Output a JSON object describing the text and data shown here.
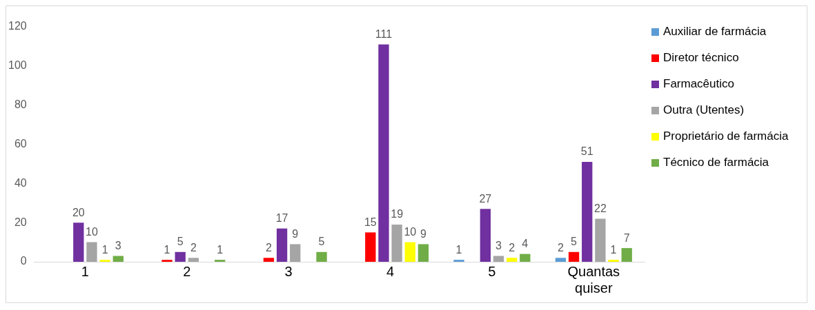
{
  "chart_data": {
    "type": "bar",
    "categories": [
      "1",
      "2",
      "3",
      "4",
      "5",
      "Quantas quiser"
    ],
    "series": [
      {
        "name": "Auxiliar de farmácia",
        "color": "#5b9bd5",
        "values": [
          0,
          0,
          0,
          0,
          1,
          2
        ],
        "value_labels": [
          null,
          null,
          null,
          null,
          "1",
          "2"
        ]
      },
      {
        "name": "Diretor técnico",
        "color": "#ff0000",
        "values": [
          0,
          1,
          2,
          15,
          0,
          5
        ],
        "value_labels": [
          null,
          "1",
          "2",
          "15",
          null,
          "5"
        ]
      },
      {
        "name": "Farmacêutico",
        "color": "#7030a0",
        "values": [
          20,
          5,
          17,
          111,
          27,
          51
        ],
        "value_labels": [
          "20",
          "5",
          "17",
          "111",
          "27",
          "51"
        ]
      },
      {
        "name": "Outra  (Utentes)",
        "color": "#a5a5a5",
        "values": [
          10,
          2,
          9,
          19,
          3,
          22
        ],
        "value_labels": [
          "10",
          "2",
          "9",
          "19",
          "3",
          "22"
        ]
      },
      {
        "name": "Proprietário de farmácia",
        "color": "#ffff00",
        "values": [
          1,
          0,
          0,
          10,
          2,
          1
        ],
        "value_labels": [
          "1",
          null,
          null,
          "10",
          "2",
          "1"
        ]
      },
      {
        "name": "Técnico de farmácia",
        "color": "#70ad47",
        "values": [
          3,
          1,
          5,
          9,
          4,
          7
        ],
        "value_labels": [
          "3",
          "1",
          "5",
          "9",
          "4",
          "7"
        ]
      }
    ],
    "ylim": [
      0,
      120
    ],
    "yticks": [
      0,
      20,
      40,
      60,
      80,
      100,
      120
    ],
    "grid": false,
    "legend": "right"
  }
}
